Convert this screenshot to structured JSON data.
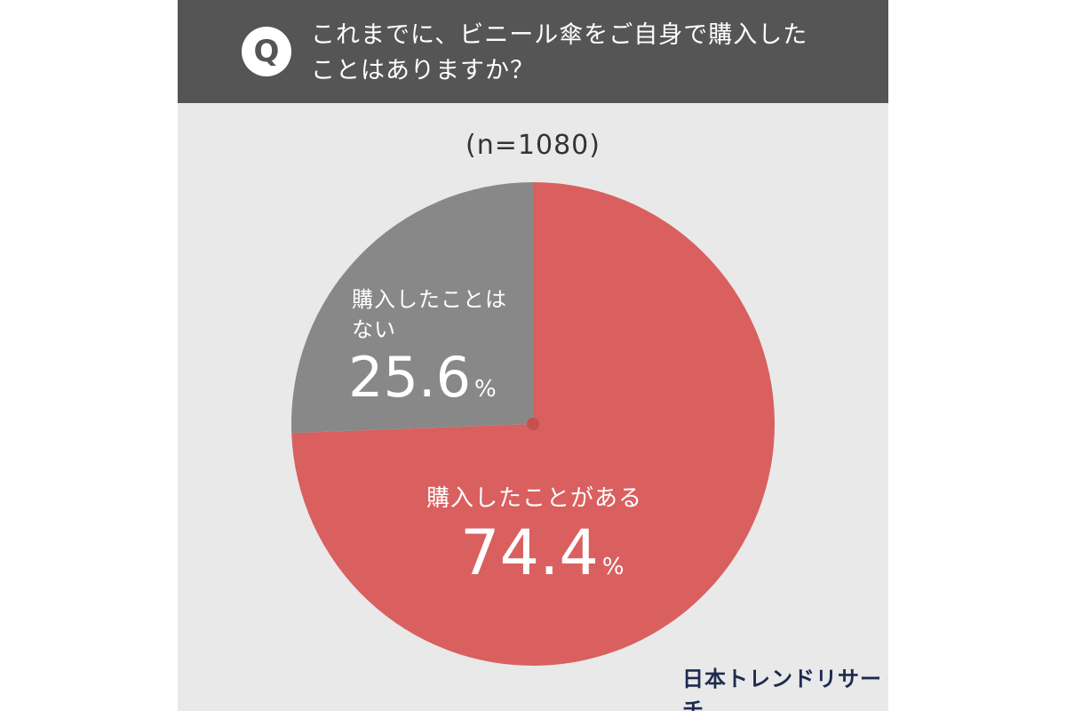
{
  "question": {
    "badge": "Q",
    "line1": "これまでに、ビニール傘をご自身で購入した",
    "line2": "ことはありますか？"
  },
  "sample_size": "(n=1080)",
  "logo_text": "日本トレンドリサーチ",
  "labels": {
    "yes_name": "購入したことがある",
    "yes_pct": "74.4",
    "no_name_line1": "購入したことは",
    "no_name_line2": "ない",
    "no_pct": "25.6",
    "pct_unit": "%"
  },
  "colors": {
    "yes": "#d9605f",
    "no": "#888888",
    "question_bar": "#555555",
    "background": "#e9e9e9"
  },
  "chart_data": {
    "type": "pie",
    "title": "これまでに、ビニール傘をご自身で購入したことはありますか？",
    "subtitle": "(n=1080)",
    "start": "12 o'clock, clockwise",
    "slices": [
      {
        "label": "購入したことがある",
        "value": 74.4,
        "color": "#d9605f"
      },
      {
        "label": "購入したことはない",
        "value": 25.6,
        "color": "#888888"
      }
    ]
  }
}
